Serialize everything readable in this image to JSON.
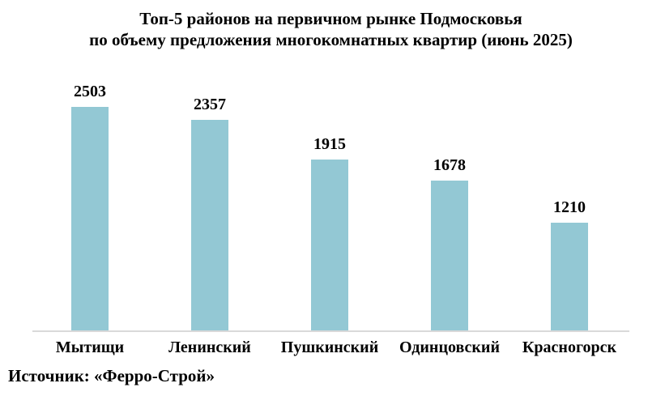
{
  "chart_data": {
    "type": "bar",
    "title": "Топ-5 районов на первичном рынке Подмосковья по объему предложения многокомнатных квартир (июнь 2025)",
    "title_line1": "Топ-5 районов на первичном рынке Подмосковья",
    "title_line2": "по объему предложения многокомнатных квартир (июнь 2025)",
    "categories": [
      "Мытищи",
      "Ленинский",
      "Пушкинский",
      "Одинцовский",
      "Красногорск"
    ],
    "values": [
      2503,
      2357,
      1915,
      1678,
      1210
    ],
    "xlabel": "",
    "ylabel": "",
    "y_axis_shown": false,
    "grid": false,
    "legend_position": "none",
    "value_labels_shown": true,
    "bar_color": "#93c8d4",
    "axis_line_color": "#d9d9d9",
    "text_color": "#000000",
    "source": "Источник: «Ферро-Строй»"
  }
}
